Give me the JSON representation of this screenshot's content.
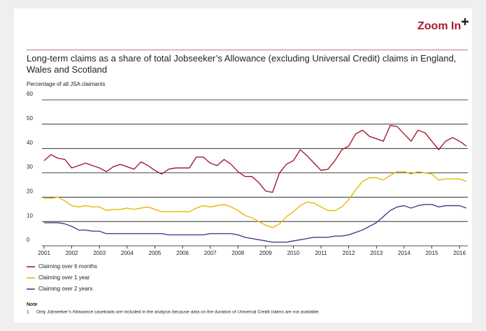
{
  "zoom_label": "Zoom In",
  "chart_data": {
    "type": "line",
    "title": "Long-term claims as a share of total Jobseeker’s Allowance (excluding Universal Credit) claims in England, Wales and Scotland",
    "y_label": "Percentage of all JSA claimants",
    "x": [
      2001,
      2001.25,
      2001.5,
      2001.75,
      2002,
      2002.25,
      2002.5,
      2002.75,
      2003,
      2003.25,
      2003.5,
      2003.75,
      2004,
      2004.25,
      2004.5,
      2004.75,
      2005,
      2005.25,
      2005.5,
      2005.75,
      2006,
      2006.25,
      2006.5,
      2006.75,
      2007,
      2007.25,
      2007.5,
      2007.75,
      2008,
      2008.25,
      2008.5,
      2008.75,
      2009,
      2009.25,
      2009.5,
      2009.75,
      2010,
      2010.25,
      2010.5,
      2010.75,
      2011,
      2011.25,
      2011.5,
      2011.75,
      2012,
      2012.25,
      2012.5,
      2012.75,
      2013,
      2013.25,
      2013.5,
      2013.75,
      2014,
      2014.25,
      2014.5,
      2014.75,
      2015,
      2015.25,
      2015.5,
      2015.75,
      2016,
      2016.25
    ],
    "series": [
      {
        "name": "Claiming over 6 months",
        "color": "#a6192e",
        "values": [
          35,
          37.5,
          36,
          35.5,
          32,
          33,
          34,
          33,
          32,
          30.5,
          32.5,
          33.5,
          32.5,
          31.5,
          34.5,
          33,
          31,
          29.5,
          31.5,
          32,
          32,
          32,
          36.5,
          36.5,
          34,
          33,
          35.5,
          33.5,
          30.5,
          28.5,
          28.5,
          26,
          22.5,
          22,
          30,
          33.5,
          35,
          39.5,
          37,
          34,
          31,
          31.5,
          35,
          39.5,
          41,
          46,
          47.5,
          45,
          44,
          43,
          49.5,
          49,
          46,
          43,
          47.5,
          46.5,
          43,
          39.5,
          43,
          44.5,
          43,
          41
        ]
      },
      {
        "name": "Claiming over 1 year",
        "color": "#eab800",
        "values": [
          19.5,
          19.5,
          20,
          18.5,
          16.5,
          16,
          16.5,
          16,
          16,
          14.5,
          15,
          15,
          15.5,
          15,
          15.5,
          16,
          15,
          14,
          14,
          14,
          14,
          14,
          15.5,
          16.5,
          16,
          16.5,
          17,
          16,
          14.5,
          12.5,
          11.5,
          10,
          8.5,
          7.5,
          9,
          12,
          14,
          16.5,
          18,
          17.5,
          16,
          14.5,
          14.5,
          16,
          19,
          23,
          26.5,
          28,
          28,
          27,
          29,
          30.5,
          30.5,
          29.5,
          30.5,
          30,
          29.5,
          27,
          27.5,
          27.5,
          27.5,
          26.5
        ]
      },
      {
        "name": "Claiming over 2 years",
        "color": "#4b3a8f",
        "values": [
          9.5,
          9.5,
          9.5,
          9,
          8,
          6.5,
          6.5,
          6,
          6,
          5,
          5,
          5,
          5,
          5,
          5,
          5,
          5,
          5,
          4.5,
          4.5,
          4.5,
          4.5,
          4.5,
          4.5,
          5,
          5,
          5,
          5,
          4.5,
          3.5,
          3,
          2.5,
          2,
          1.5,
          1.5,
          1.5,
          2,
          2.5,
          3,
          3.5,
          3.5,
          3.5,
          4,
          4,
          4.5,
          5.5,
          6.5,
          8,
          9.5,
          12,
          14.5,
          16,
          16.5,
          15.5,
          16.5,
          17,
          17,
          16,
          16.5,
          16.5,
          16.5,
          15.5
        ]
      }
    ],
    "xlim": [
      2001,
      2016.3
    ],
    "xticks": [
      2001,
      2002,
      2003,
      2004,
      2005,
      2006,
      2007,
      2008,
      2009,
      2010,
      2011,
      2012,
      2013,
      2014,
      2015,
      2016
    ],
    "ylim": [
      0,
      60
    ],
    "yticks": [
      0,
      10,
      20,
      30,
      40,
      50,
      60
    ],
    "grid": true,
    "note_heading": "Note",
    "notes": [
      {
        "number": "1",
        "text": "Only Jobseeker’s Allowance caseloads are included in the analysis because data on the duration of Universal Credit claims are not available."
      }
    ]
  }
}
